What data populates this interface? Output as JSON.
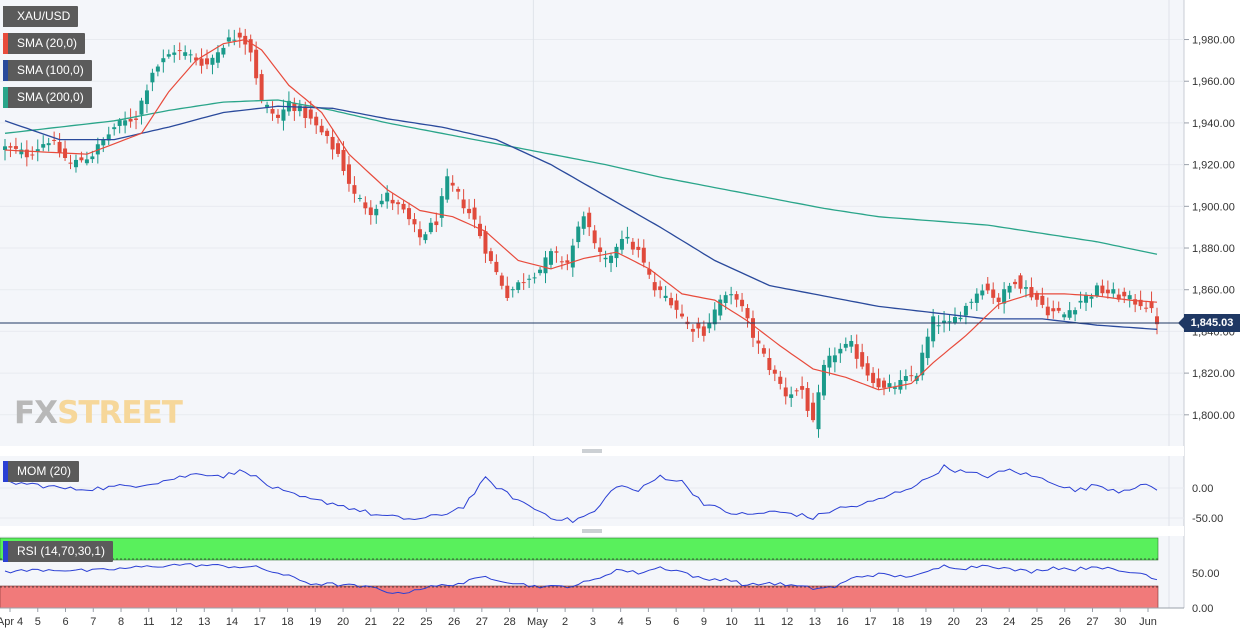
{
  "instrument": "XAU/USD",
  "indicators": [
    {
      "label": "SMA (20,0)",
      "color": "#e84b3c"
    },
    {
      "label": "SMA (100,0)",
      "color": "#2a4a9c"
    },
    {
      "label": "SMA (200,0)",
      "color": "#2aa58a"
    }
  ],
  "current_price": "1,845.03",
  "logo": {
    "fx": "FX",
    "street": "STREET"
  },
  "colors": {
    "bull": "#1a9a8a",
    "bear": "#e04a3c",
    "sma20": "#e84b3c",
    "sma100": "#2a4a9c",
    "sma200": "#2aa58a",
    "grid": "#e8ebf0",
    "mom": "#2a3fd4",
    "rsi": "#2a3fd4",
    "overbought_zone": "#59f05c",
    "oversold_zone": "#f17a7a"
  },
  "chart_data": [
    {
      "type": "candlestick",
      "panel": "price",
      "x_tick_labels": [
        "Apr 4",
        "5",
        "6",
        "7",
        "8",
        "11",
        "12",
        "13",
        "14",
        "17",
        "18",
        "19",
        "20",
        "21",
        "22",
        "25",
        "26",
        "27",
        "28",
        "May",
        "2",
        "3",
        "4",
        "5",
        "6",
        "9",
        "10",
        "11",
        "12",
        "13",
        "16",
        "17",
        "18",
        "19",
        "20",
        "23",
        "24",
        "25",
        "26",
        "27",
        "30",
        "Jun"
      ],
      "y_ticks": [
        "1,800.00",
        "1,820.00",
        "1,840.00",
        "1,860.00",
        "1,880.00",
        "1,900.00",
        "1,920.00",
        "1,940.00",
        "1,960.00",
        "1,980.00"
      ],
      "y_tick_values": [
        1800,
        1820,
        1840,
        1860,
        1880,
        1900,
        1920,
        1940,
        1960,
        1980
      ],
      "ylim": [
        1786,
        1998
      ],
      "last_price": 1845.03,
      "close_path": [
        [
          0,
          1928
        ],
        [
          4,
          1925
        ],
        [
          8,
          1932
        ],
        [
          12,
          1920
        ],
        [
          16,
          1925
        ],
        [
          20,
          1938
        ],
        [
          24,
          1943
        ],
        [
          27,
          1965
        ],
        [
          31,
          1975
        ],
        [
          34,
          1972
        ],
        [
          37,
          1968
        ],
        [
          40,
          1978
        ],
        [
          43,
          1983
        ],
        [
          45,
          1975
        ],
        [
          47,
          1950
        ],
        [
          50,
          1942
        ],
        [
          52,
          1950
        ],
        [
          55,
          1944
        ],
        [
          58,
          1935
        ],
        [
          61,
          1925
        ],
        [
          64,
          1905
        ],
        [
          67,
          1898
        ],
        [
          70,
          1905
        ],
        [
          73,
          1897
        ],
        [
          76,
          1885
        ],
        [
          79,
          1893
        ],
        [
          81,
          1912
        ],
        [
          83,
          1905
        ],
        [
          86,
          1893
        ],
        [
          89,
          1873
        ],
        [
          92,
          1858
        ],
        [
          95,
          1865
        ],
        [
          98,
          1870
        ],
        [
          100,
          1877
        ],
        [
          103,
          1873
        ],
        [
          106,
          1897
        ],
        [
          108,
          1880
        ],
        [
          110,
          1873
        ],
        [
          113,
          1886
        ],
        [
          116,
          1878
        ],
        [
          119,
          1860
        ],
        [
          122,
          1855
        ],
        [
          125,
          1843
        ],
        [
          128,
          1840
        ],
        [
          131,
          1855
        ],
        [
          134,
          1857
        ],
        [
          137,
          1838
        ],
        [
          140,
          1823
        ],
        [
          143,
          1810
        ],
        [
          146,
          1812
        ],
        [
          148,
          1795
        ],
        [
          150,
          1822
        ],
        [
          152,
          1830
        ],
        [
          155,
          1833
        ],
        [
          158,
          1820
        ],
        [
          161,
          1812
        ],
        [
          164,
          1815
        ],
        [
          167,
          1820
        ],
        [
          170,
          1845
        ],
        [
          173,
          1843
        ],
        [
          176,
          1852
        ],
        [
          179,
          1862
        ],
        [
          182,
          1855
        ],
        [
          185,
          1865
        ],
        [
          188,
          1858
        ],
        [
          191,
          1850
        ],
        [
          194,
          1848
        ],
        [
          197,
          1855
        ],
        [
          200,
          1860
        ],
        [
          203,
          1858
        ],
        [
          206,
          1855
        ],
        [
          209,
          1853
        ],
        [
          211,
          1845
        ]
      ],
      "sma20_path": [
        [
          0,
          1927
        ],
        [
          15,
          1925
        ],
        [
          25,
          1935
        ],
        [
          30,
          1955
        ],
        [
          35,
          1970
        ],
        [
          40,
          1978
        ],
        [
          44,
          1980
        ],
        [
          47,
          1975
        ],
        [
          52,
          1958
        ],
        [
          58,
          1945
        ],
        [
          63,
          1925
        ],
        [
          70,
          1908
        ],
        [
          76,
          1898
        ],
        [
          82,
          1895
        ],
        [
          88,
          1888
        ],
        [
          94,
          1874
        ],
        [
          100,
          1870
        ],
        [
          106,
          1875
        ],
        [
          112,
          1878
        ],
        [
          118,
          1870
        ],
        [
          124,
          1858
        ],
        [
          130,
          1855
        ],
        [
          136,
          1845
        ],
        [
          142,
          1833
        ],
        [
          148,
          1822
        ],
        [
          154,
          1818
        ],
        [
          160,
          1812
        ],
        [
          166,
          1815
        ],
        [
          170,
          1825
        ],
        [
          176,
          1838
        ],
        [
          182,
          1853
        ],
        [
          188,
          1858
        ],
        [
          194,
          1858
        ],
        [
          200,
          1857
        ],
        [
          206,
          1855
        ],
        [
          211,
          1854
        ]
      ],
      "sma100_path": [
        [
          0,
          1941
        ],
        [
          10,
          1932
        ],
        [
          20,
          1932
        ],
        [
          30,
          1938
        ],
        [
          40,
          1945
        ],
        [
          50,
          1948
        ],
        [
          60,
          1947
        ],
        [
          70,
          1942
        ],
        [
          80,
          1938
        ],
        [
          90,
          1932
        ],
        [
          100,
          1920
        ],
        [
          110,
          1905
        ],
        [
          120,
          1890
        ],
        [
          130,
          1874
        ],
        [
          140,
          1862
        ],
        [
          150,
          1857
        ],
        [
          160,
          1852
        ],
        [
          170,
          1849
        ],
        [
          180,
          1846
        ],
        [
          190,
          1846
        ],
        [
          200,
          1843
        ],
        [
          211,
          1841
        ]
      ],
      "sma200_path": [
        [
          0,
          1935
        ],
        [
          10,
          1938
        ],
        [
          20,
          1941
        ],
        [
          30,
          1946
        ],
        [
          40,
          1950
        ],
        [
          50,
          1951
        ],
        [
          60,
          1946
        ],
        [
          70,
          1940
        ],
        [
          80,
          1935
        ],
        [
          90,
          1930
        ],
        [
          100,
          1925
        ],
        [
          110,
          1920
        ],
        [
          120,
          1914
        ],
        [
          130,
          1909
        ],
        [
          140,
          1904
        ],
        [
          150,
          1899
        ],
        [
          160,
          1895
        ],
        [
          170,
          1893
        ],
        [
          180,
          1891
        ],
        [
          190,
          1887
        ],
        [
          200,
          1883
        ],
        [
          211,
          1877
        ]
      ]
    },
    {
      "type": "line",
      "panel": "momentum",
      "title": "MOM (20)",
      "y_ticks": [
        "0.00",
        "-50.00"
      ],
      "y_tick_values": [
        0,
        -50
      ],
      "ylim": [
        -60,
        50
      ],
      "path": [
        [
          0,
          10
        ],
        [
          6,
          5
        ],
        [
          12,
          -2
        ],
        [
          18,
          0
        ],
        [
          24,
          5
        ],
        [
          28,
          10
        ],
        [
          32,
          18
        ],
        [
          36,
          25
        ],
        [
          40,
          20
        ],
        [
          44,
          30
        ],
        [
          48,
          5
        ],
        [
          52,
          -10
        ],
        [
          56,
          -20
        ],
        [
          60,
          -25
        ],
        [
          64,
          -35
        ],
        [
          68,
          -45
        ],
        [
          72,
          -50
        ],
        [
          76,
          -52
        ],
        [
          80,
          -45
        ],
        [
          84,
          -30
        ],
        [
          88,
          15
        ],
        [
          92,
          -10
        ],
        [
          96,
          -30
        ],
        [
          100,
          -48
        ],
        [
          104,
          -55
        ],
        [
          108,
          -40
        ],
        [
          112,
          5
        ],
        [
          116,
          -5
        ],
        [
          120,
          20
        ],
        [
          124,
          10
        ],
        [
          128,
          -25
        ],
        [
          132,
          -40
        ],
        [
          136,
          -45
        ],
        [
          140,
          -40
        ],
        [
          144,
          -42
        ],
        [
          148,
          -50
        ],
        [
          152,
          -35
        ],
        [
          156,
          -30
        ],
        [
          160,
          -20
        ],
        [
          164,
          -5
        ],
        [
          168,
          10
        ],
        [
          172,
          35
        ],
        [
          176,
          25
        ],
        [
          180,
          20
        ],
        [
          184,
          30
        ],
        [
          188,
          20
        ],
        [
          192,
          10
        ],
        [
          196,
          -5
        ],
        [
          200,
          5
        ],
        [
          204,
          -5
        ],
        [
          208,
          5
        ],
        [
          211,
          -2
        ]
      ]
    },
    {
      "type": "line",
      "panel": "rsi",
      "title": "RSI (14,70,30,1)",
      "y_ticks": [
        "50.00",
        "0.00"
      ],
      "y_tick_values": [
        50,
        0
      ],
      "ylim": [
        0,
        100
      ],
      "overbought": 70,
      "oversold": 30,
      "path": [
        [
          0,
          52
        ],
        [
          8,
          55
        ],
        [
          16,
          53
        ],
        [
          24,
          58
        ],
        [
          32,
          62
        ],
        [
          40,
          60
        ],
        [
          46,
          58
        ],
        [
          50,
          50
        ],
        [
          56,
          35
        ],
        [
          62,
          33
        ],
        [
          68,
          28
        ],
        [
          72,
          20
        ],
        [
          76,
          28
        ],
        [
          80,
          32
        ],
        [
          84,
          36
        ],
        [
          88,
          45
        ],
        [
          92,
          38
        ],
        [
          96,
          32
        ],
        [
          100,
          30
        ],
        [
          104,
          32
        ],
        [
          108,
          40
        ],
        [
          112,
          55
        ],
        [
          116,
          50
        ],
        [
          120,
          58
        ],
        [
          124,
          52
        ],
        [
          128,
          40
        ],
        [
          132,
          42
        ],
        [
          136,
          32
        ],
        [
          140,
          36
        ],
        [
          144,
          32
        ],
        [
          148,
          28
        ],
        [
          152,
          30
        ],
        [
          156,
          45
        ],
        [
          160,
          48
        ],
        [
          164,
          45
        ],
        [
          168,
          48
        ],
        [
          172,
          60
        ],
        [
          176,
          57
        ],
        [
          180,
          62
        ],
        [
          184,
          55
        ],
        [
          188,
          52
        ],
        [
          192,
          58
        ],
        [
          196,
          55
        ],
        [
          200,
          60
        ],
        [
          204,
          52
        ],
        [
          208,
          50
        ],
        [
          211,
          42
        ]
      ]
    }
  ]
}
